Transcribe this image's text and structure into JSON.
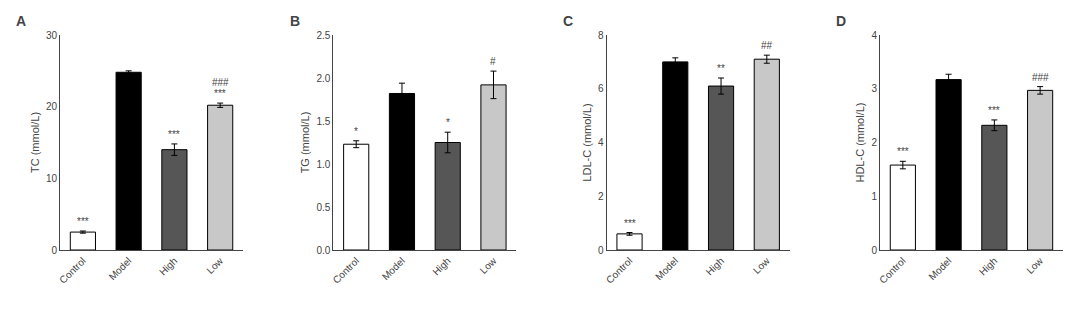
{
  "chart_data": [
    {
      "type": "bar",
      "title": "A",
      "ylabel": "TC (mmol/L)",
      "categories": [
        "Control",
        "Model",
        "High",
        "Low"
      ],
      "values": [
        2.5,
        24.8,
        14.0,
        20.2
      ],
      "errors": [
        0.15,
        0.2,
        0.8,
        0.3
      ],
      "colors": [
        "#ffffff",
        "#000000",
        "#565656",
        "#c8c8c8"
      ],
      "ylim": [
        0,
        30
      ],
      "yticks": [
        0,
        10,
        20,
        30
      ],
      "grid": false,
      "annotations": [
        {
          "category": "Control",
          "text": "***"
        },
        {
          "category": "High",
          "text": "***"
        },
        {
          "category": "Low",
          "text": "***"
        },
        {
          "category": "Low",
          "text": "###"
        }
      ]
    },
    {
      "type": "bar",
      "title": "B",
      "ylabel": "TG (mmol/L)",
      "categories": [
        "Control",
        "Model",
        "High",
        "Low"
      ],
      "values": [
        1.23,
        1.82,
        1.25,
        1.92
      ],
      "errors": [
        0.04,
        0.12,
        0.12,
        0.16
      ],
      "colors": [
        "#ffffff",
        "#000000",
        "#565656",
        "#c8c8c8"
      ],
      "ylim": [
        0,
        2.5
      ],
      "yticks": [
        {
          "value": 0,
          "label": "0.0"
        },
        0.5,
        {
          "value": 1,
          "label": "1.0"
        },
        1.5,
        {
          "value": 2,
          "label": "2.0"
        },
        2.5
      ],
      "grid": false,
      "annotations": [
        {
          "category": "Control",
          "text": "*"
        },
        {
          "category": "High",
          "text": "*"
        },
        {
          "category": "Low",
          "text": "#"
        }
      ]
    },
    {
      "type": "bar",
      "title": "C",
      "ylabel": "LDL-C (mmol/L)",
      "categories": [
        "Control",
        "Model",
        "High",
        "Low"
      ],
      "values": [
        0.6,
        7.0,
        6.1,
        7.1
      ],
      "errors": [
        0.05,
        0.15,
        0.3,
        0.15
      ],
      "colors": [
        "#ffffff",
        "#000000",
        "#565656",
        "#c8c8c8"
      ],
      "ylim": [
        0,
        8
      ],
      "yticks": [
        0,
        2,
        4,
        6,
        8
      ],
      "grid": false,
      "annotations": [
        {
          "category": "Control",
          "text": "***"
        },
        {
          "category": "High",
          "text": "**"
        },
        {
          "category": "Low",
          "text": "##"
        }
      ]
    },
    {
      "type": "bar",
      "title": "D",
      "ylabel": "HDL-C (mmol/L)",
      "categories": [
        "Control",
        "Model",
        "High",
        "Low"
      ],
      "values": [
        1.58,
        3.17,
        2.32,
        2.97
      ],
      "errors": [
        0.07,
        0.1,
        0.1,
        0.07
      ],
      "colors": [
        "#ffffff",
        "#000000",
        "#565656",
        "#c8c8c8"
      ],
      "ylim": [
        0,
        4
      ],
      "yticks": [
        0,
        1,
        2,
        3,
        4
      ],
      "grid": false,
      "annotations": [
        {
          "category": "Control",
          "text": "***"
        },
        {
          "category": "High",
          "text": "***"
        },
        {
          "category": "Low",
          "text": "###"
        }
      ]
    }
  ]
}
